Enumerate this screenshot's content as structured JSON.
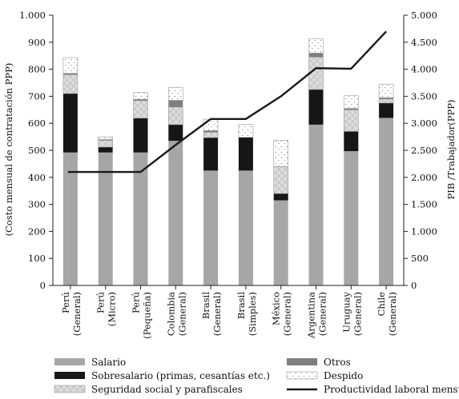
{
  "chart_data": {
    "type": "bar",
    "stacked": true,
    "categories": [
      [
        "Perú",
        "(General)"
      ],
      [
        "Perú",
        "(Micro)"
      ],
      [
        "Perú",
        "(Pequeña)"
      ],
      [
        "Colombia",
        "(General)"
      ],
      [
        "Brasil",
        "(General)"
      ],
      [
        "Brasil",
        "(Simples)"
      ],
      [
        "México",
        "(General)"
      ],
      [
        "Argentina",
        "(General)"
      ],
      [
        "Uruguay",
        "(General)"
      ],
      [
        "Chile",
        "(General)"
      ]
    ],
    "series": [
      {
        "name": "Salario",
        "color": "#a6a6a6",
        "pattern": "solid",
        "values": [
          492,
          492,
          492,
          535,
          425,
          425,
          315,
          595,
          497,
          620
        ]
      },
      {
        "name": "Sobresalario (primas, cesantías etc.)",
        "color": "#161616",
        "pattern": "solid",
        "values": [
          218,
          20,
          127,
          60,
          122,
          123,
          25,
          130,
          73,
          55
        ]
      },
      {
        "name": "Seguridad social y parafiscales",
        "color": "#d9d9d9",
        "pattern": "crosshatch",
        "values": [
          70,
          25,
          65,
          65,
          20,
          0,
          100,
          120,
          80,
          15
        ]
      },
      {
        "name": "Otros",
        "color": "#7f7f7f",
        "pattern": "solid",
        "values": [
          5,
          3,
          5,
          25,
          6,
          0,
          0,
          15,
          5,
          5
        ]
      },
      {
        "name": "Despido",
        "color": "#ffffff",
        "pattern": "dots",
        "values": [
          58,
          10,
          25,
          48,
          42,
          48,
          97,
          53,
          47,
          50
        ]
      }
    ],
    "line_series": {
      "name": "Productividad laboral mensual",
      "axis": "right",
      "color": "#1a1a1a",
      "values": [
        2100,
        2100,
        2100,
        2600,
        3080,
        3080,
        3500,
        4020,
        4010,
        4700
      ]
    },
    "left_axis": {
      "label": "(Costo mensual de contratación PPP)",
      "range": [
        0,
        1000
      ],
      "ticks": [
        0,
        100,
        200,
        300,
        400,
        500,
        600,
        700,
        800,
        900,
        1000
      ],
      "tick_labels": [
        "0",
        "100",
        "200",
        "300",
        "400",
        "500",
        "600",
        "700",
        "800",
        "900",
        "1.000"
      ]
    },
    "right_axis": {
      "label": "PIB /Trabajador(PPP)",
      "range": [
        0,
        5000
      ],
      "ticks": [
        0,
        500,
        1000,
        1500,
        2000,
        2500,
        3000,
        3500,
        4000,
        4500,
        5000
      ],
      "tick_labels": [
        "0",
        "500",
        "1.000",
        "1.500",
        "2.000",
        "2.500",
        "3.000",
        "3.500",
        "4.000",
        "4.500",
        "5.000"
      ]
    },
    "legend": {
      "position": "bottom",
      "entries": [
        {
          "label": "Salario",
          "kind": "bar",
          "color": "#a6a6a6",
          "pattern": "solid"
        },
        {
          "label": "Otros",
          "kind": "bar",
          "color": "#7f7f7f",
          "pattern": "solid"
        },
        {
          "label": "Sobresalario (primas, cesantías etc.)",
          "kind": "bar",
          "color": "#161616",
          "pattern": "solid"
        },
        {
          "label": "Despido",
          "kind": "bar",
          "color": "#ffffff",
          "pattern": "dots"
        },
        {
          "label": "Seguridad social y parafiscales",
          "kind": "bar",
          "color": "#d9d9d9",
          "pattern": "crosshatch"
        },
        {
          "label": "Productividad laboral mensual",
          "kind": "line",
          "color": "#1a1a1a"
        }
      ]
    },
    "grid": false
  }
}
